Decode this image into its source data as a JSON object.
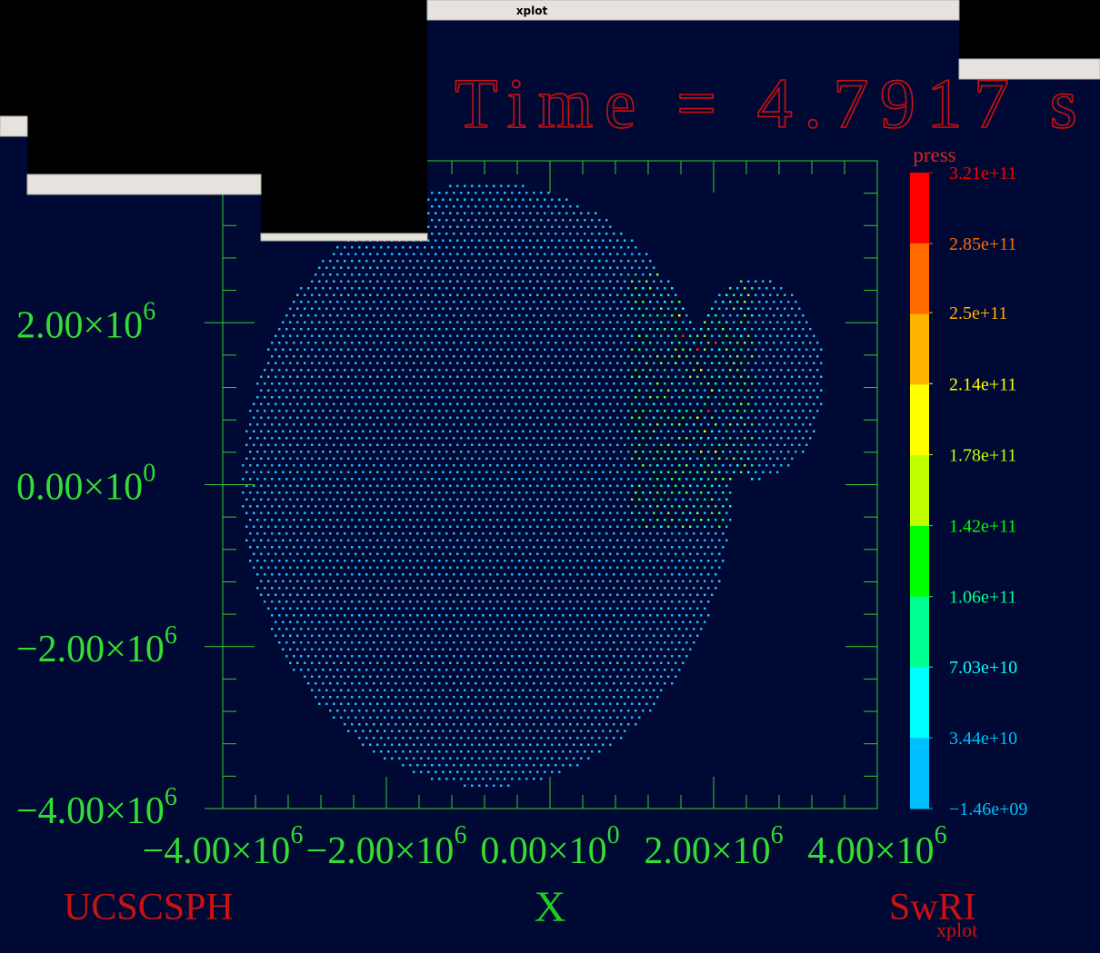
{
  "window": {
    "title": "xplot"
  },
  "plot": {
    "title": "Time = 4.7917 s",
    "xlabel": "X",
    "xlim": [
      -4000000,
      4000000
    ],
    "ylim": [
      -4000000,
      4000000
    ],
    "xticks": [
      {
        "value": -4000000,
        "label": "−4.00×10",
        "exponent": "6"
      },
      {
        "value": -2000000,
        "label": "−2.00×10",
        "exponent": "6"
      },
      {
        "value": 0,
        "label": "0.00×10",
        "exponent": "0"
      },
      {
        "value": 2000000,
        "label": "2.00×10",
        "exponent": "6"
      },
      {
        "value": 4000000,
        "label": "4.00×10",
        "exponent": "6"
      }
    ],
    "yticks": [
      {
        "value": -4000000,
        "label": "−4.00×10",
        "exponent": "6"
      },
      {
        "value": -2000000,
        "label": "−2.00×10",
        "exponent": "6"
      },
      {
        "value": 0,
        "label": "0.00×10",
        "exponent": "0"
      },
      {
        "value": 2000000,
        "label": "2.00×10",
        "exponent": "6"
      }
    ],
    "colorbar": {
      "label": "press",
      "ticks": [
        {
          "value": 321000000000,
          "label": "3.21e+11"
        },
        {
          "value": 285000000000,
          "label": "2.85e+11"
        },
        {
          "value": 250000000000,
          "label": "2.5e+11"
        },
        {
          "value": 214000000000,
          "label": "2.14e+11"
        },
        {
          "value": 178000000000,
          "label": "1.78e+11"
        },
        {
          "value": 142000000000,
          "label": "1.42e+11"
        },
        {
          "value": 106000000000,
          "label": "1.06e+11"
        },
        {
          "value": 70300000000,
          "label": "7.03e+10"
        },
        {
          "value": 34400000000,
          "label": "3.44e+10"
        },
        {
          "value": -1460000000,
          "label": "−1.46e+09"
        }
      ],
      "colors": [
        "#ff0000",
        "#ff6a00",
        "#ffb400",
        "#ffff00",
        "#c0ff00",
        "#00ff00",
        "#00ff90",
        "#00ffff",
        "#00bfff"
      ]
    }
  },
  "footer": {
    "left": "UCSCSPH",
    "right": "SwRI",
    "small": "xplot"
  }
}
